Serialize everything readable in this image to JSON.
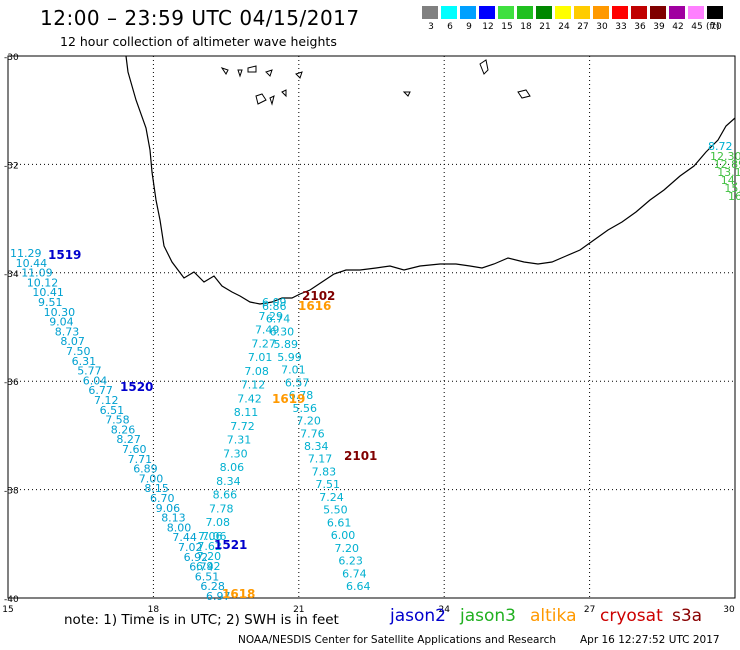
{
  "header": {
    "title": "12:00 – 23:59 UTC 04/15/2017",
    "subtitle": "12 hour collection of altimeter wave heights"
  },
  "legend": {
    "unit": "(ft)",
    "bins": [
      {
        "label": "3",
        "color": "#808080"
      },
      {
        "label": "6",
        "color": "#00ffff"
      },
      {
        "label": "9",
        "color": "#00a0ff"
      },
      {
        "label": "12",
        "color": "#0000ff"
      },
      {
        "label": "15",
        "color": "#40e040"
      },
      {
        "label": "18",
        "color": "#20c020"
      },
      {
        "label": "21",
        "color": "#008800"
      },
      {
        "label": "24",
        "color": "#ffff00"
      },
      {
        "label": "27",
        "color": "#ffcc00"
      },
      {
        "label": "30",
        "color": "#ff9900"
      },
      {
        "label": "33",
        "color": "#ff0000"
      },
      {
        "label": "36",
        "color": "#c00000"
      },
      {
        "label": "39",
        "color": "#800000"
      },
      {
        "label": "42",
        "color": "#a000a0"
      },
      {
        "label": "45",
        "color": "#ff80ff"
      },
      {
        "label": "70",
        "color": "#000000"
      }
    ]
  },
  "axes": {
    "lon_ticks": [
      "15",
      "18",
      "21",
      "24",
      "27",
      "30"
    ],
    "lat_ticks": [
      "-30",
      "-32",
      "-34",
      "-36",
      "-38",
      "-40"
    ]
  },
  "tracks": [
    {
      "sat": "jason2",
      "time": "1519",
      "color": "#0000cc",
      "values": [
        "11.29",
        "10.44",
        "11.09",
        "10.12",
        "10.41",
        "9.51",
        "10.30",
        "9.04",
        "8.73",
        "8.07",
        "7.50",
        "6.31",
        "5.77",
        "6.04",
        "6.77",
        "7.12",
        "6.51",
        "7.58",
        "8.26",
        "8.27",
        "7.60",
        "7.71",
        "6.89",
        "7.00",
        "8.15",
        "6.70",
        "9.06",
        "8.13",
        "8.00",
        "7.44",
        "7.02",
        "6.92",
        "6.74",
        "6.51",
        "6.28",
        "6.97"
      ]
    },
    {
      "sat": "jason2",
      "time": "1520",
      "color": "#0000cc",
      "values": []
    },
    {
      "sat": "jason2",
      "time": "1521",
      "color": "#0000cc",
      "values": [
        "7.06",
        "7.62",
        "7.20",
        "6.92"
      ]
    },
    {
      "sat": "altika",
      "time": "1618",
      "color": "#ff9900",
      "values": []
    },
    {
      "sat": "altika",
      "time": "1616",
      "color": "#ff9900",
      "values": []
    },
    {
      "sat": "altika",
      "time": "1619",
      "color": "#ff9900",
      "values": []
    },
    {
      "sat": "cryosat",
      "time": "2102",
      "color": "#800000",
      "values": []
    },
    {
      "sat": "cryosat",
      "time": "2101",
      "color": "#800000",
      "values": []
    },
    {
      "sat": "jason3",
      "time": "",
      "color": "#40c040",
      "values": [
        "12.30",
        "12.89",
        "13.1",
        "14.",
        "15.",
        "16"
      ]
    },
    {
      "sat": "cyan-a",
      "time": "",
      "color": "#00b0d0",
      "values": [
        "6.09",
        "7.29",
        "7.49",
        "7.27",
        "7.01",
        "7.08",
        "7.12",
        "7.42",
        "8.11",
        "7.72",
        "7.31",
        "7.30",
        "8.06",
        "8.34",
        "8.66",
        "7.78",
        "7.08",
        "7.06"
      ]
    },
    {
      "sat": "cyan-b",
      "time": "",
      "color": "#00b0d0",
      "values": [
        "6.86",
        "6.74",
        "6.30",
        "5.89",
        "5.99",
        "7.01",
        "6.57",
        "6.78",
        "5.56",
        "7.20",
        "7.76",
        "8.34",
        "7.17",
        "7.83",
        "7.51",
        "7.24",
        "5.50",
        "6.61",
        "6.00",
        "7.20",
        "6.23",
        "6.74",
        "6.64",
        "8.72"
      ]
    }
  ],
  "bottom": {
    "note": "note: 1) Time is in UTC; 2) SWH is in feet",
    "sats": [
      {
        "label": "jason2",
        "color": "#0000cc"
      },
      {
        "label": "jason3",
        "color": "#20b020"
      },
      {
        "label": "altika",
        "color": "#ff9900"
      },
      {
        "label": "cryosat",
        "color": "#cc0000"
      },
      {
        "label": "s3a",
        "color": "#880000"
      }
    ],
    "credit": "NOAA/NESDIS Center for Satellite Applications and Research",
    "timestamp": "Apr 16 12:27:52 UTC 2017"
  }
}
